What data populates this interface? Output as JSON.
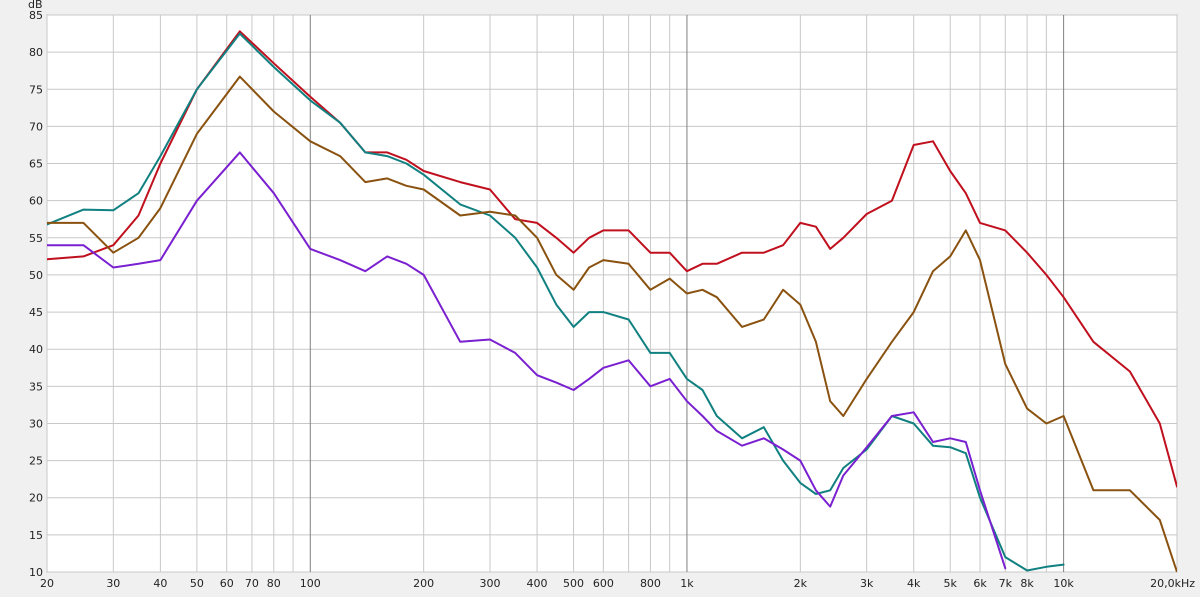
{
  "chart_data": {
    "type": "line",
    "y_label": "dB",
    "log_x": true,
    "grid": true,
    "xlim": [
      20,
      20000
    ],
    "ylim": [
      10,
      85
    ],
    "yticks": [
      10,
      15,
      20,
      25,
      30,
      35,
      40,
      45,
      50,
      55,
      60,
      65,
      70,
      75,
      80,
      85
    ],
    "xticks": [
      20,
      30,
      40,
      50,
      60,
      70,
      80,
      100,
      200,
      300,
      400,
      500,
      600,
      800,
      {
        "value": 1000,
        "label": "1k"
      },
      {
        "value": 2000,
        "label": "2k"
      },
      {
        "value": 3000,
        "label": "3k"
      },
      {
        "value": 4000,
        "label": "4k"
      },
      {
        "value": 5000,
        "label": "5k"
      },
      {
        "value": 6000,
        "label": "6k"
      },
      {
        "value": 7000,
        "label": "7k"
      },
      {
        "value": 8000,
        "label": "8k"
      },
      {
        "value": 10000,
        "label": "10k"
      },
      {
        "value": 20000,
        "label": "20,0kHz"
      }
    ],
    "x_minor_grid": [
      90,
      700,
      900,
      9000
    ],
    "x": [
      20,
      25,
      30,
      35,
      40,
      50,
      65,
      80,
      100,
      120,
      140,
      160,
      180,
      200,
      250,
      300,
      350,
      400,
      450,
      500,
      550,
      600,
      700,
      800,
      900,
      1000,
      1100,
      1200,
      1400,
      1600,
      1800,
      2000,
      2200,
      2400,
      2600,
      3000,
      3500,
      4000,
      4500,
      5000,
      5500,
      6000,
      7000,
      8000,
      9000,
      10000,
      12000,
      15000,
      18000,
      20000
    ],
    "series": [
      {
        "color": "#c0101e",
        "values": [
          52.1,
          52.5,
          54,
          58,
          65,
          75,
          82.8,
          78.5,
          74,
          70.5,
          66.5,
          66.5,
          65.5,
          64,
          62.5,
          61.5,
          57.5,
          57,
          55,
          53,
          55,
          56,
          56,
          53,
          53,
          50.5,
          51.5,
          51.5,
          53,
          53,
          54,
          57,
          56.5,
          53.5,
          55,
          58.2,
          60,
          67.5,
          68,
          64,
          61,
          57,
          56,
          53,
          50,
          47,
          41,
          37,
          30,
          21.5
        ]
      },
      {
        "color": "#108080",
        "values": [
          56.8,
          58.8,
          58.7,
          61,
          66,
          75,
          82.5,
          78,
          73.5,
          70.5,
          66.5,
          66,
          65,
          63.5,
          59.5,
          58,
          55,
          51,
          46,
          43,
          45,
          45,
          44,
          39.5,
          39.5,
          36,
          34.5,
          31,
          28,
          29.5,
          25,
          22,
          20.5,
          21,
          24,
          26.5,
          31,
          30,
          27,
          26.8,
          26,
          20,
          12,
          10.2,
          10.7,
          11,
          null,
          null,
          null,
          null
        ]
      },
      {
        "color": "#8a5210",
        "values": [
          57,
          57,
          53,
          55,
          59,
          69,
          76.7,
          72,
          68,
          66,
          62.5,
          63,
          62,
          61.5,
          58,
          58.5,
          58,
          55,
          50,
          48,
          51,
          52,
          51.5,
          48,
          49.5,
          47.5,
          48,
          47,
          43,
          44,
          48,
          46,
          41,
          33,
          31,
          36,
          41,
          45,
          50.5,
          52.5,
          56,
          52,
          38,
          32,
          30,
          31,
          21,
          21,
          17,
          10
        ]
      },
      {
        "color": "#7a20d0",
        "values": [
          54,
          54,
          51,
          51.5,
          52,
          60,
          66.5,
          61,
          53.5,
          52,
          50.5,
          52.5,
          51.5,
          50,
          41,
          41.3,
          39.5,
          36.5,
          35.5,
          34.5,
          36,
          37.5,
          38.5,
          35,
          36,
          33,
          31,
          29,
          27,
          28,
          26.5,
          25,
          21,
          18.8,
          23,
          26.8,
          31,
          31.5,
          27.5,
          28,
          27.5,
          21,
          10.5,
          null,
          null,
          11,
          null,
          null,
          null,
          null
        ]
      }
    ]
  }
}
